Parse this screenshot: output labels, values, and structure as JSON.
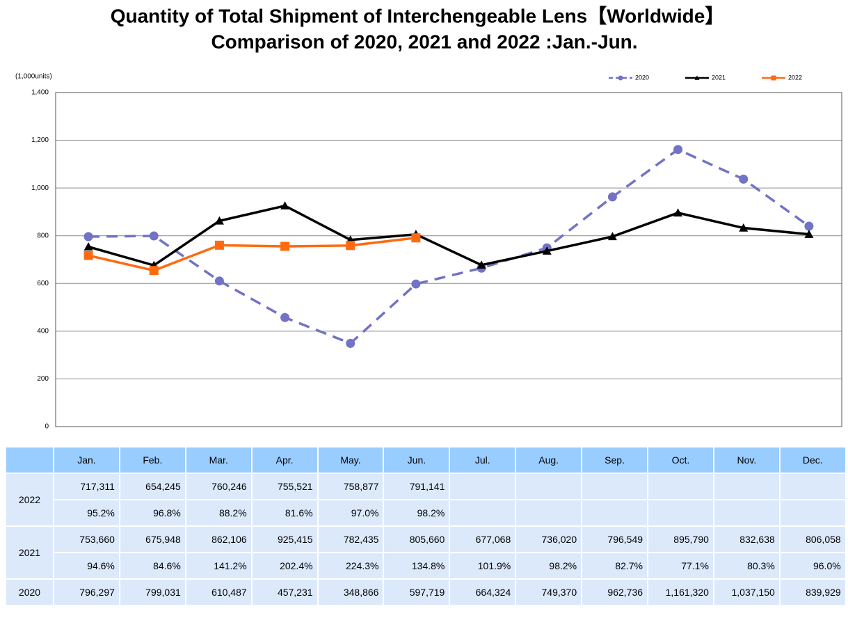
{
  "chart_data": {
    "type": "line",
    "title": "Quantity of Total Shipment of Interchengeable Lens【Worldwide】",
    "subtitle": "Comparison of 2020, 2021 and 2022 :Jan.-Jun.",
    "y_label": "(1,000units)",
    "categories": [
      "Jan.",
      "Feb.",
      "Mar.",
      "Apr.",
      "May.",
      "Jun.",
      "Jul.",
      "Aug.",
      "Sep.",
      "Oct.",
      "Nov.",
      "Dec."
    ],
    "series": [
      {
        "name": "2020",
        "color": "#7272c6",
        "dashed": true,
        "marker": "circle",
        "values": [
          796.297,
          799.031,
          610.487,
          457.231,
          348.866,
          597.719,
          664.324,
          749.37,
          962.736,
          1161.32,
          1037.15,
          839.929
        ]
      },
      {
        "name": "2021",
        "color": "#000000",
        "dashed": false,
        "marker": "triangle",
        "values": [
          753.66,
          675.948,
          862.106,
          925.415,
          782.435,
          805.66,
          677.068,
          736.02,
          796.549,
          895.79,
          832.638,
          806.058
        ]
      },
      {
        "name": "2022",
        "color": "#ff6a10",
        "dashed": false,
        "marker": "square",
        "values": [
          717.311,
          654.245,
          760.246,
          755.521,
          758.877,
          791.141,
          null,
          null,
          null,
          null,
          null,
          null
        ]
      }
    ],
    "ylim": [
      0,
      1400
    ],
    "yticks": [
      0,
      200,
      400,
      600,
      800,
      {
        "value": 1000,
        "label": "1,000"
      },
      {
        "value": 1200,
        "label": "1,200"
      },
      {
        "value": 1400,
        "label": "1,400"
      }
    ],
    "grid": true,
    "legend": "top-right"
  },
  "table": {
    "groups": [
      {
        "label": "2022",
        "rows": [
          [
            "717,311",
            "654,245",
            "760,246",
            "755,521",
            "758,877",
            "791,141"
          ],
          [
            "95.2%",
            "96.8%",
            "88.2%",
            "81.6%",
            "97.0%",
            "98.2%"
          ]
        ]
      },
      {
        "label": "2021",
        "rows": [
          [
            "753,660",
            "675,948",
            "862,106",
            "925,415",
            "782,435",
            "805,660",
            "677,068",
            "736,020",
            "796,549",
            "895,790",
            "832,638",
            "806,058"
          ],
          [
            "94.6%",
            "84.6%",
            "141.2%",
            "202.4%",
            "224.3%",
            "134.8%",
            "101.9%",
            "98.2%",
            "82.7%",
            "77.1%",
            "80.3%",
            "96.0%"
          ]
        ]
      },
      {
        "label": "2020",
        "rows": [
          [
            "796,297",
            "799,031",
            "610,487",
            "457,231",
            "348,866",
            "597,719",
            "664,324",
            "749,370",
            "962,736",
            "1,161,320",
            "1,037,150",
            "839,929"
          ]
        ]
      }
    ]
  }
}
